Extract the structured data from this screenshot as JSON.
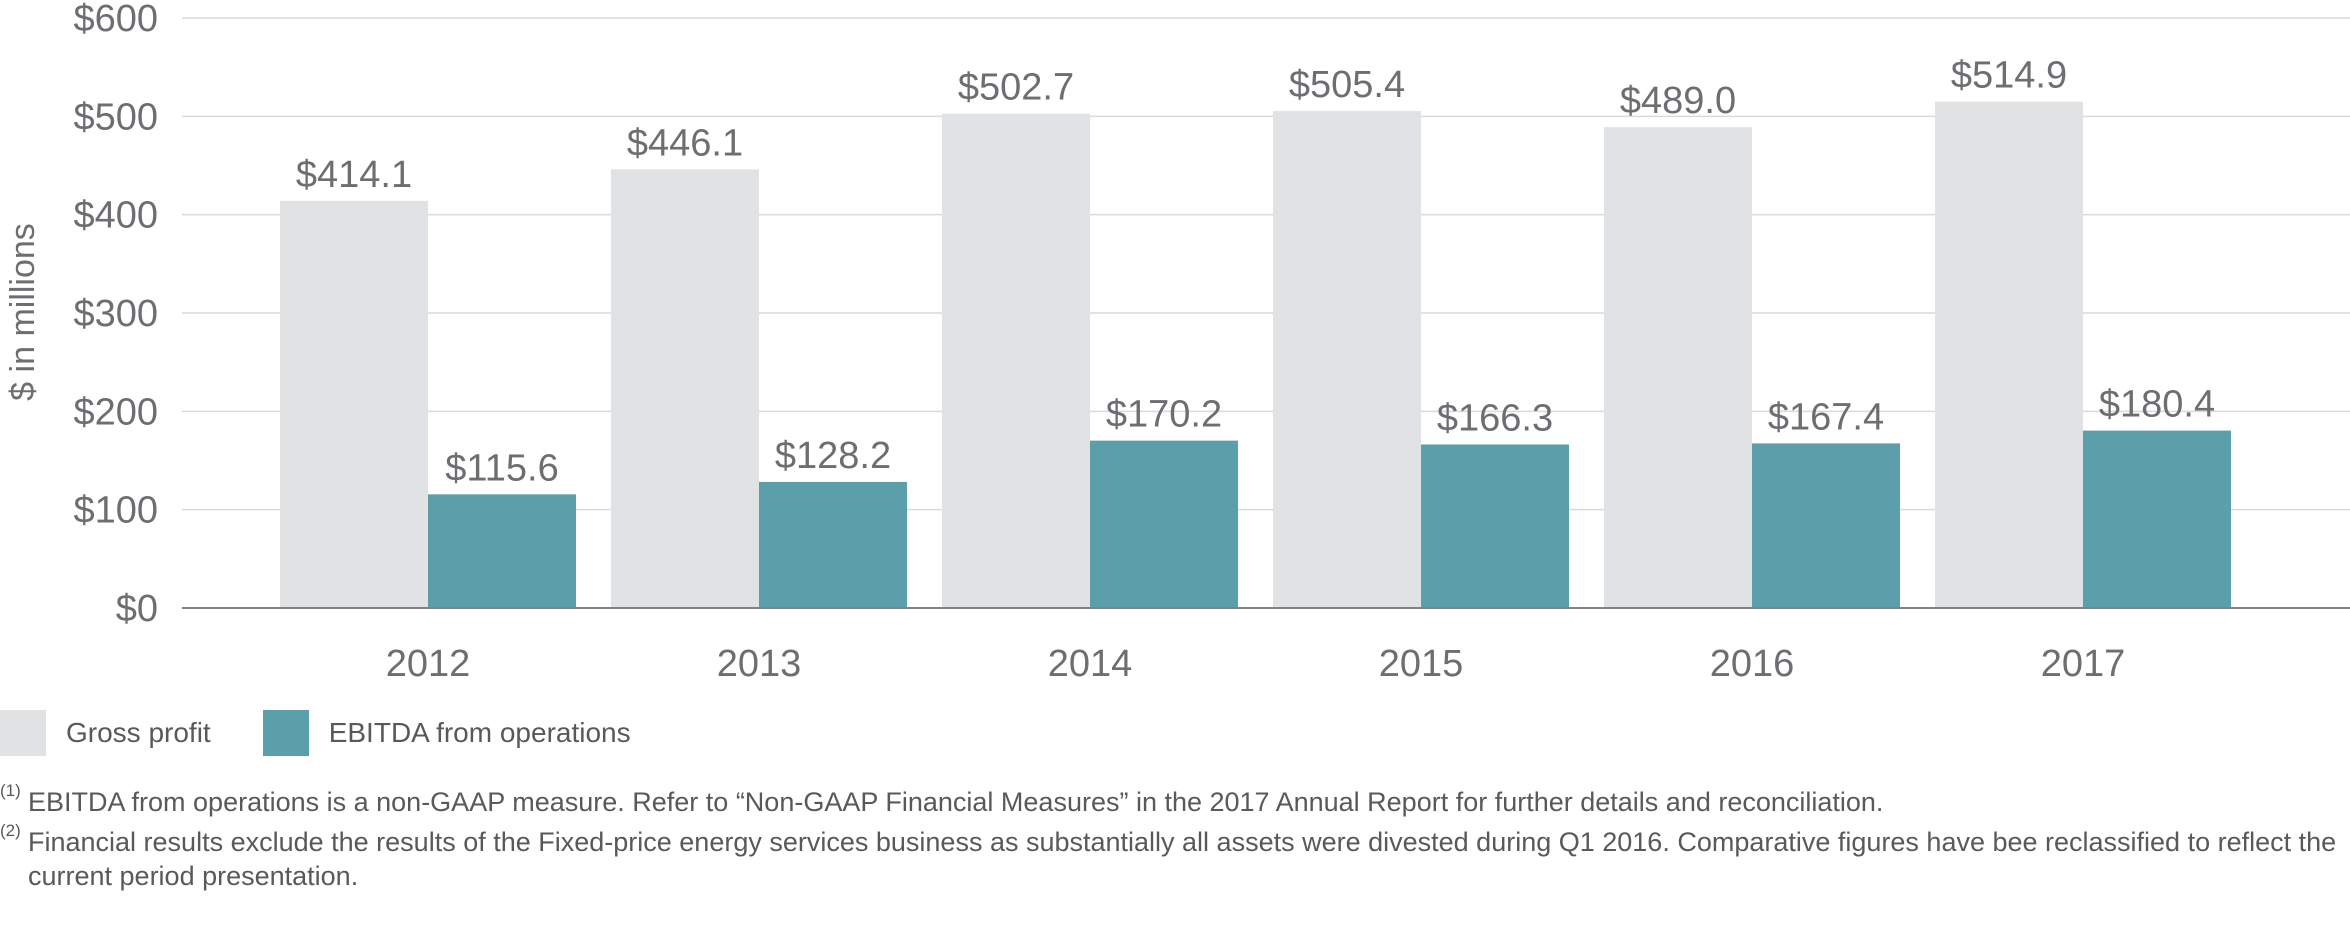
{
  "chart_data": {
    "type": "bar",
    "ylabel": "$ in millions",
    "ylim": [
      0,
      600
    ],
    "y_ticks": [
      0,
      100,
      200,
      300,
      400,
      500,
      600
    ],
    "y_tick_labels": [
      "$0",
      "$100",
      "$200",
      "$300",
      "$400",
      "$500",
      "$600"
    ],
    "grid": true,
    "legend_position": "bottom-left",
    "categories": [
      "2012",
      "2013",
      "2014",
      "2015",
      "2016",
      "2017"
    ],
    "series": [
      {
        "name": "Gross profit",
        "color": "#e1e2e3",
        "values": [
          414.1,
          446.1,
          502.7,
          505.4,
          489.0,
          514.9
        ],
        "labels": [
          "$414.1",
          "$446.1",
          "$502.7",
          "$505.4",
          "$489.0",
          "$514.9"
        ]
      },
      {
        "name": "EBITDA from operations",
        "color": "#5b9fab",
        "values": [
          115.6,
          128.2,
          170.2,
          166.3,
          167.4,
          180.4
        ],
        "labels": [
          "$115.6",
          "$128.2",
          "$170.2",
          "$166.3",
          "$167.4",
          "$180.4"
        ]
      }
    ]
  },
  "footnotes": [
    {
      "mark": "(1)",
      "text": "EBITDA from operations is a non-GAAP measure. Refer to “Non-GAAP Financial Measures” in the 2017 Annual Report for further details and reconciliation."
    },
    {
      "mark": "(2)",
      "text": "Financial results exclude the results of the Fixed-price energy services business as substantially all assets were divested during Q1 2016. Comparative figures have bee reclassified to reflect the current period presentation."
    }
  ]
}
